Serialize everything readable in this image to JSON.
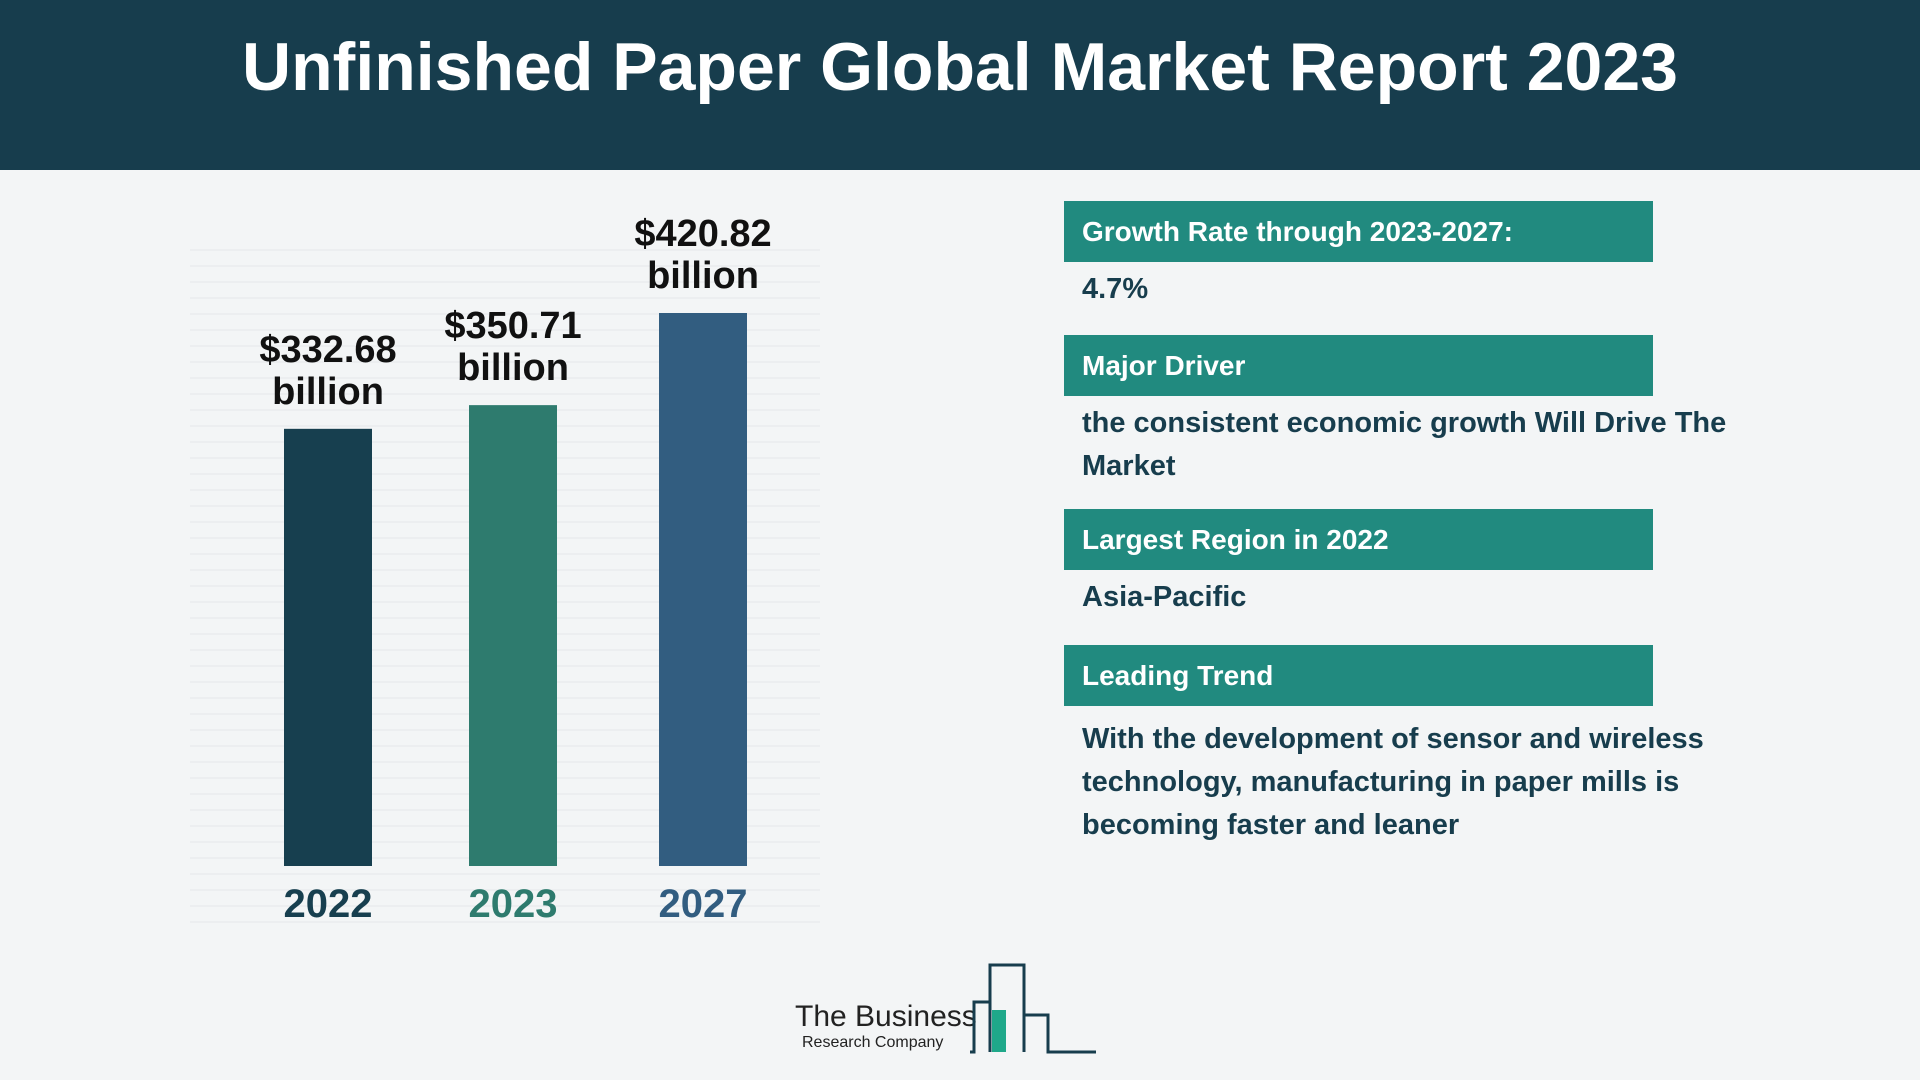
{
  "title": "Unfinished Paper Global Market Report 2023",
  "chart_data": {
    "type": "bar",
    "categories": [
      "2022",
      "2023",
      "2027"
    ],
    "values": [
      332.68,
      350.71,
      420.82
    ],
    "value_labels": [
      "$332.68 billion",
      "$350.71 billion",
      "$420.82 billion"
    ],
    "colors": [
      "#173f4f",
      "#2e7b6e",
      "#325d80"
    ]
  },
  "panels": [
    {
      "heading": "Growth Rate through 2023-2027:",
      "text": "4.7%"
    },
    {
      "heading": "Major Driver",
      "text": "the consistent economic growth Will Drive The Market"
    },
    {
      "heading": "Largest Region in 2022",
      "text": "Asia-Pacific"
    },
    {
      "heading": "Leading Trend",
      "text": "With the development of sensor and wireless technology, manufacturing in paper mills is becoming faster and leaner"
    }
  ],
  "logo": {
    "name": "The Business",
    "subtitle": "Research Company"
  }
}
